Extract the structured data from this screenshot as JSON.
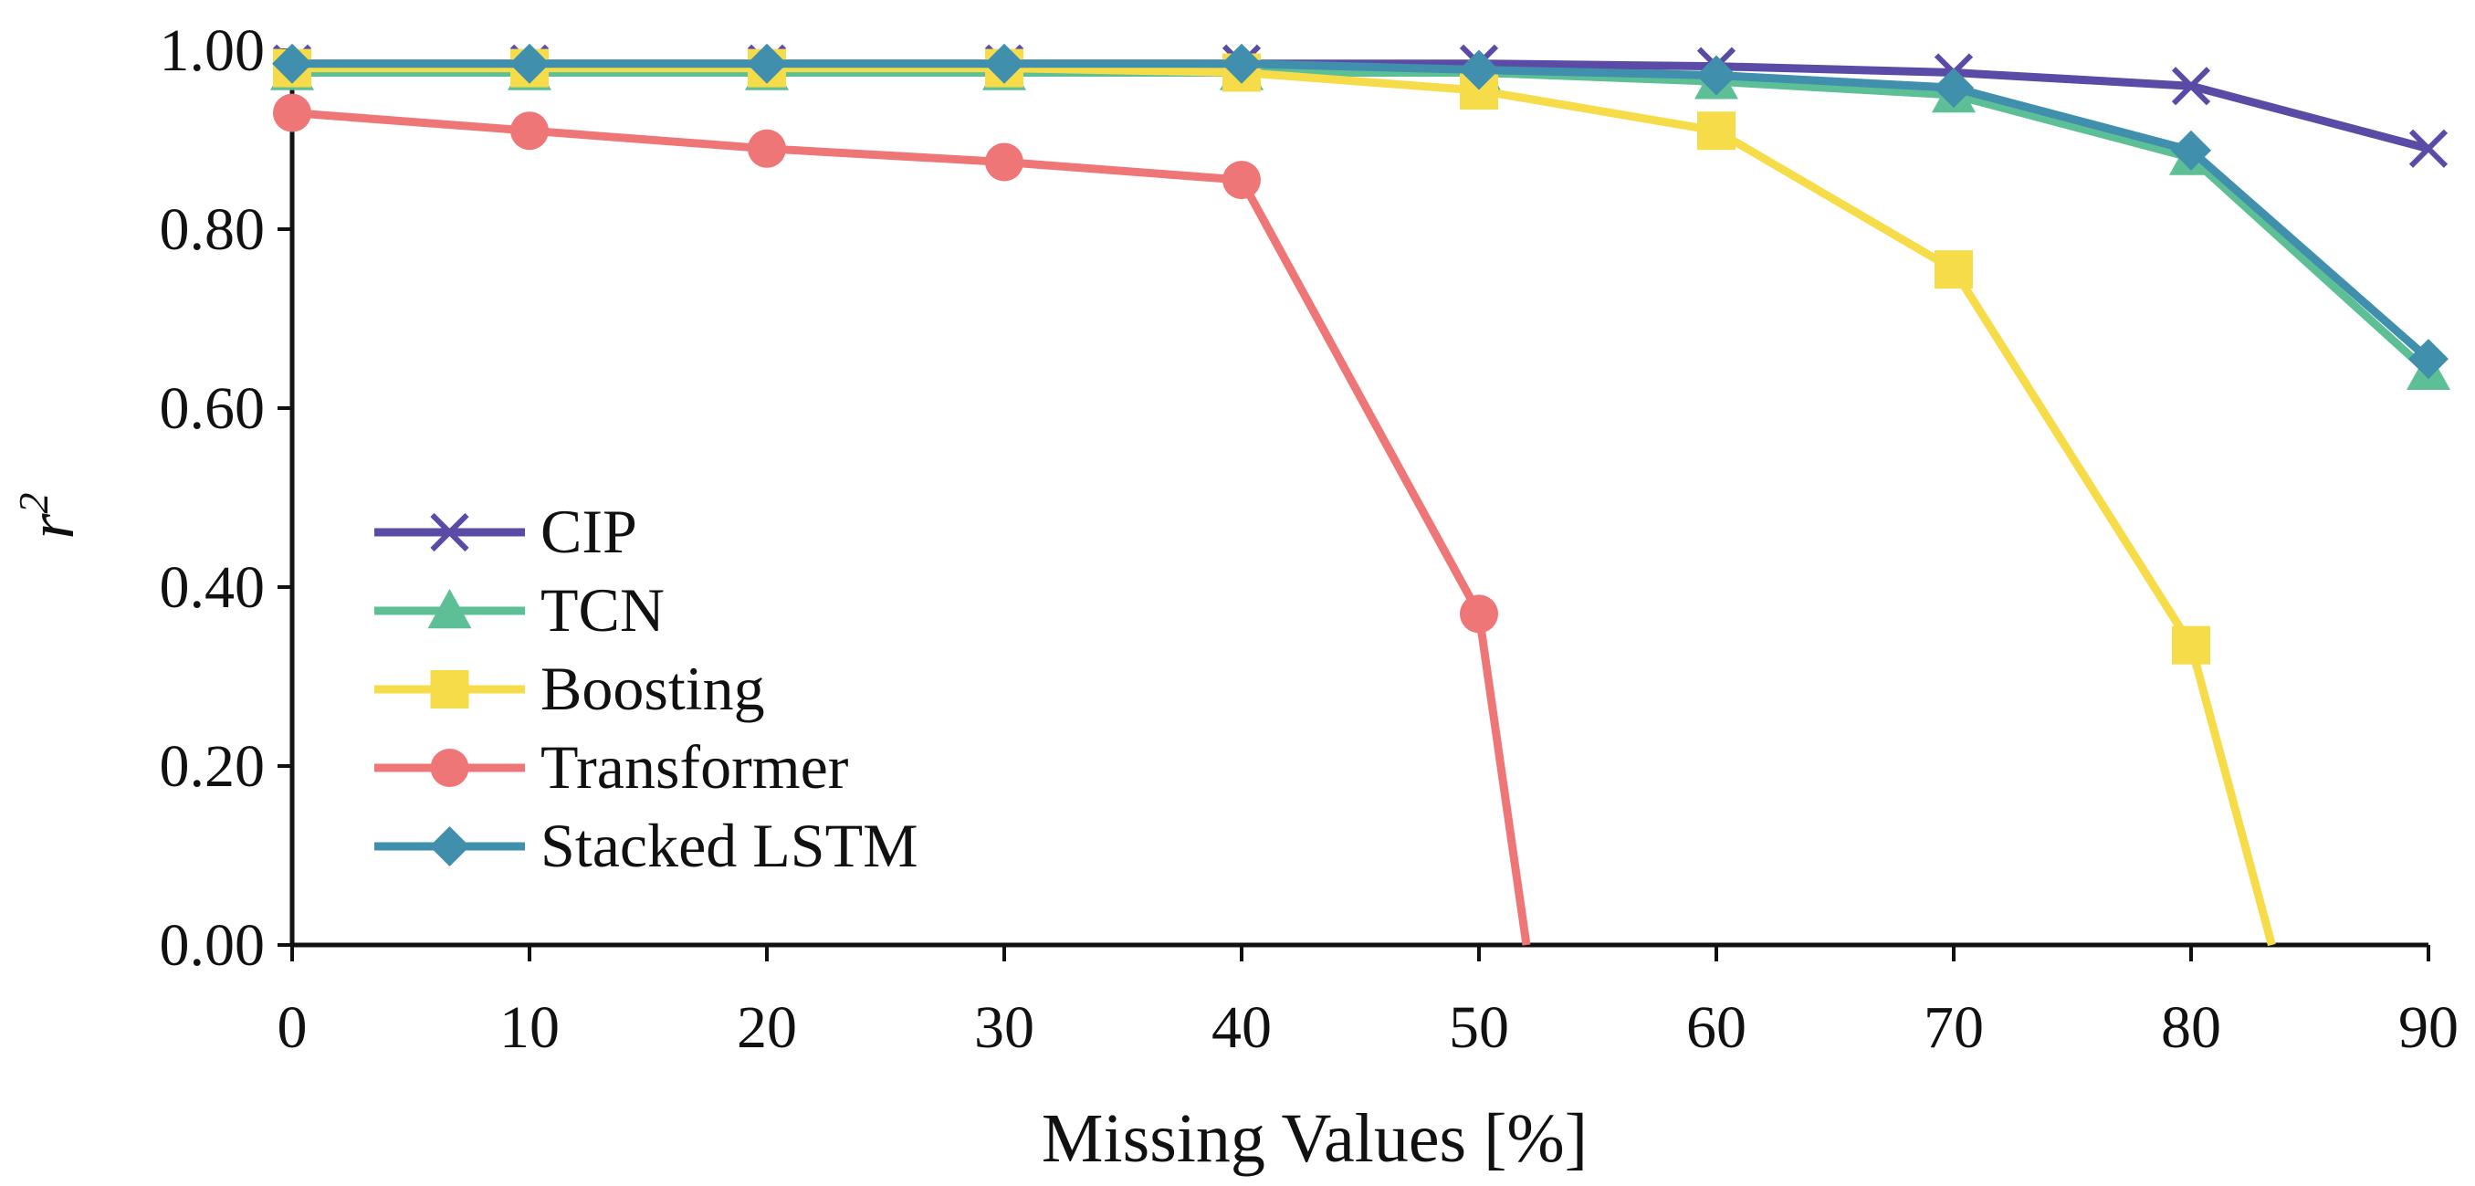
{
  "chart_data": {
    "type": "line",
    "title": "",
    "xlabel": "Missing Values [%]",
    "ylabel": "r",
    "ylabel_superscript": "2",
    "x": [
      0,
      10,
      20,
      30,
      40,
      50,
      60,
      70,
      80,
      90
    ],
    "xlim": [
      0,
      90
    ],
    "ylim": [
      0,
      1
    ],
    "xticks": [
      "0",
      "10",
      "20",
      "30",
      "40",
      "50",
      "60",
      "70",
      "80",
      "90"
    ],
    "yticks": [
      "0.00",
      "0.20",
      "0.40",
      "0.60",
      "0.80",
      "1.00"
    ],
    "legend_position": "center-left",
    "series": [
      {
        "name": "CIP",
        "color": "#5b4ba6",
        "marker": "x",
        "x": [
          0,
          10,
          20,
          30,
          40,
          50,
          60,
          70,
          80,
          90
        ],
        "values": [
          0.985,
          0.985,
          0.985,
          0.985,
          0.985,
          0.985,
          0.982,
          0.975,
          0.96,
          0.89
        ]
      },
      {
        "name": "TCN",
        "color": "#5dbf95",
        "marker": "triangle",
        "x": [
          0,
          10,
          20,
          30,
          40,
          50,
          60,
          70,
          80,
          90
        ],
        "values": [
          0.975,
          0.975,
          0.975,
          0.975,
          0.975,
          0.975,
          0.965,
          0.95,
          0.88,
          0.64
        ]
      },
      {
        "name": "Boosting",
        "color": "#f7dc4a",
        "marker": "square",
        "x": [
          0,
          10,
          20,
          30,
          40,
          50,
          60,
          70,
          80,
          83.4
        ],
        "values": [
          0.98,
          0.98,
          0.98,
          0.98,
          0.975,
          0.955,
          0.91,
          0.755,
          0.335,
          0.0
        ],
        "marker_count": 9
      },
      {
        "name": "Transformer",
        "color": "#ef7677",
        "marker": "circle",
        "x": [
          0,
          10,
          20,
          30,
          40,
          50,
          52.0
        ],
        "values": [
          0.93,
          0.91,
          0.89,
          0.875,
          0.855,
          0.37,
          0.0
        ],
        "marker_count": 6
      },
      {
        "name": "Stacked LSTM",
        "color": "#3f8fad",
        "marker": "diamond",
        "x": [
          0,
          10,
          20,
          30,
          40,
          50,
          60,
          70,
          80,
          90
        ],
        "values": [
          0.985,
          0.985,
          0.985,
          0.985,
          0.985,
          0.978,
          0.972,
          0.958,
          0.888,
          0.655
        ]
      }
    ]
  }
}
